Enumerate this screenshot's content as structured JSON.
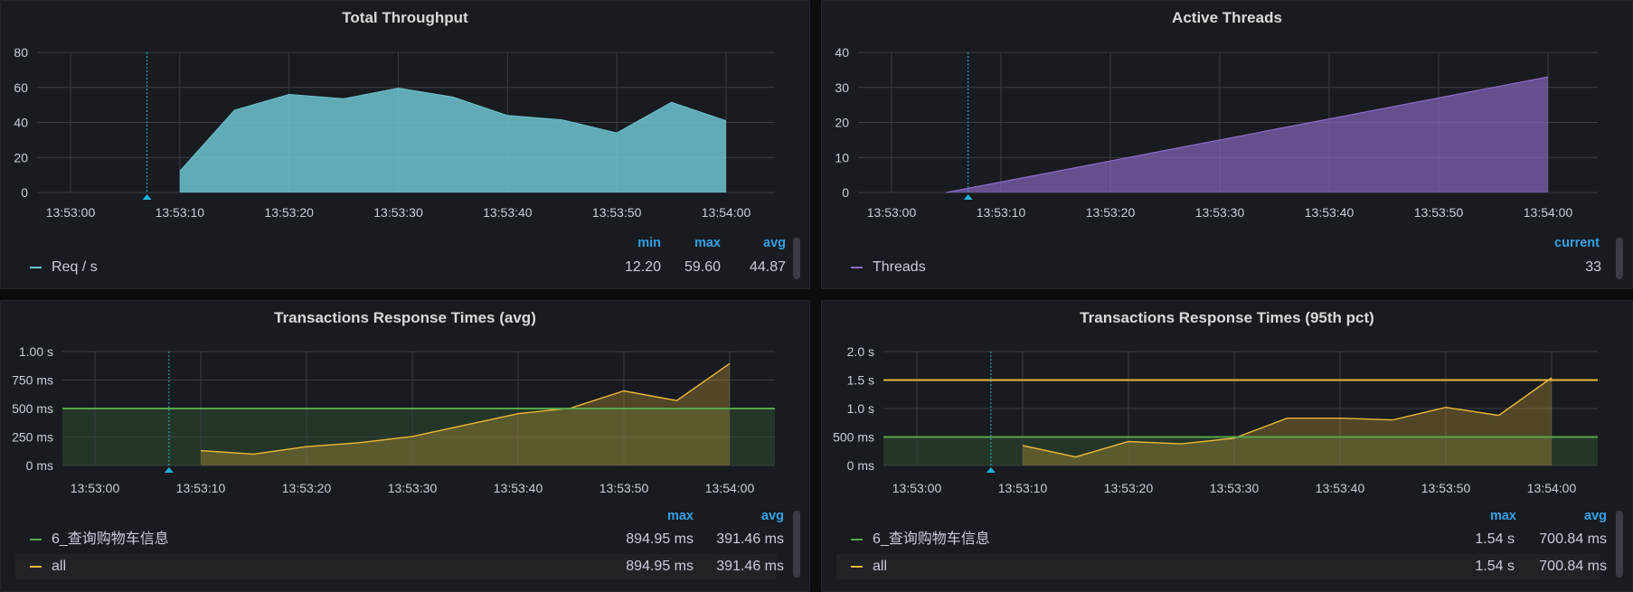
{
  "colors": {
    "throughput": "#6ec4d1",
    "threads": "#8f6cc9",
    "green": "#56a64b",
    "yellow": "#eab839",
    "annotation": "#1fb4da",
    "header": "#33a2e5"
  },
  "x_ticks": [
    "13:53:00",
    "13:53:10",
    "13:53:20",
    "13:53:30",
    "13:53:40",
    "13:53:50",
    "13:54:00"
  ],
  "panels": {
    "throughput": {
      "title": "Total Throughput",
      "legend_headers": [
        "min",
        "max",
        "avg"
      ],
      "legend_rows": [
        {
          "name": "Req / s",
          "values": [
            "12.20",
            "59.60",
            "44.87"
          ]
        }
      ]
    },
    "threads": {
      "title": "Active Threads",
      "legend_headers": [
        "current"
      ],
      "legend_rows": [
        {
          "name": "Threads",
          "values": [
            "33"
          ]
        }
      ]
    },
    "rt_avg": {
      "title": "Transactions Response Times (avg)",
      "legend_headers": [
        "max",
        "avg"
      ],
      "legend_rows": [
        {
          "name": "6_查询购物车信息",
          "values": [
            "894.95 ms",
            "391.46 ms"
          ]
        },
        {
          "name": "all",
          "values": [
            "894.95 ms",
            "391.46 ms"
          ]
        }
      ]
    },
    "rt_p95": {
      "title": "Transactions Response Times (95th pct)",
      "legend_headers": [
        "max",
        "avg"
      ],
      "legend_rows": [
        {
          "name": "6_查询购物车信息",
          "values": [
            "1.54 s",
            "700.84 ms"
          ]
        },
        {
          "name": "all",
          "values": [
            "1.54 s",
            "700.84 ms"
          ]
        }
      ]
    }
  },
  "chart_data": [
    {
      "type": "area",
      "title": "Total Throughput",
      "x_tick_labels": [
        "13:53:00",
        "13:53:10",
        "13:53:20",
        "13:53:30",
        "13:53:40",
        "13:53:50",
        "13:54:00"
      ],
      "y_tick_labels": [
        "0",
        "20",
        "40",
        "60",
        "80"
      ],
      "ylim": [
        0,
        80
      ],
      "annotation_x": "13:53:07",
      "series": [
        {
          "name": "Req / s",
          "x": [
            "13:53:10",
            "13:53:15",
            "13:53:20",
            "13:53:25",
            "13:53:30",
            "13:53:35",
            "13:53:40",
            "13:53:45",
            "13:53:50",
            "13:53:55",
            "13:54:00"
          ],
          "values": [
            12.2,
            47,
            56,
            53.5,
            59.6,
            54.5,
            44,
            41.5,
            34,
            51.5,
            41
          ]
        }
      ]
    },
    {
      "type": "area",
      "title": "Active Threads",
      "x_tick_labels": [
        "13:53:00",
        "13:53:10",
        "13:53:20",
        "13:53:30",
        "13:53:40",
        "13:53:50",
        "13:54:00"
      ],
      "y_tick_labels": [
        "0",
        "10",
        "20",
        "30",
        "40"
      ],
      "ylim": [
        0,
        40
      ],
      "annotation_x": "13:53:07",
      "series": [
        {
          "name": "Threads",
          "x": [
            "13:53:05",
            "13:54:00"
          ],
          "values": [
            0,
            33
          ]
        }
      ]
    },
    {
      "type": "area",
      "title": "Transactions Response Times (avg)",
      "x_tick_labels": [
        "13:53:00",
        "13:53:10",
        "13:53:20",
        "13:53:30",
        "13:53:40",
        "13:53:50",
        "13:54:00"
      ],
      "y_tick_labels": [
        "0 ms",
        "250 ms",
        "500 ms",
        "750 ms",
        "1.00 s"
      ],
      "ylim": [
        0,
        1000
      ],
      "y_unit": "ms",
      "annotation_x": "13:53:07",
      "threshold": 500,
      "series": [
        {
          "name": "all",
          "x": [
            "13:53:10",
            "13:53:15",
            "13:53:20",
            "13:53:25",
            "13:53:30",
            "13:53:35",
            "13:53:40",
            "13:53:45",
            "13:53:50",
            "13:53:55",
            "13:54:00"
          ],
          "values": [
            130,
            100,
            165,
            200,
            255,
            355,
            455,
            505,
            655,
            570,
            895
          ]
        }
      ]
    },
    {
      "type": "area",
      "title": "Transactions Response Times (95th pct)",
      "x_tick_labels": [
        "13:53:00",
        "13:53:10",
        "13:53:20",
        "13:53:30",
        "13:53:40",
        "13:53:50",
        "13:54:00"
      ],
      "y_tick_labels": [
        "0 ms",
        "500 ms",
        "1.0 s",
        "1.5 s",
        "2.0 s"
      ],
      "ylim": [
        0,
        2000
      ],
      "y_unit": "ms",
      "annotation_x": "13:53:07",
      "threshold": 500,
      "threshold_2": 1500,
      "series": [
        {
          "name": "all",
          "x": [
            "13:53:10",
            "13:53:15",
            "13:53:20",
            "13:53:25",
            "13:53:30",
            "13:53:35",
            "13:53:40",
            "13:53:45",
            "13:53:50",
            "13:53:55",
            "13:54:00"
          ],
          "values": [
            350,
            150,
            420,
            380,
            480,
            830,
            830,
            800,
            1020,
            880,
            1540
          ]
        }
      ]
    }
  ]
}
